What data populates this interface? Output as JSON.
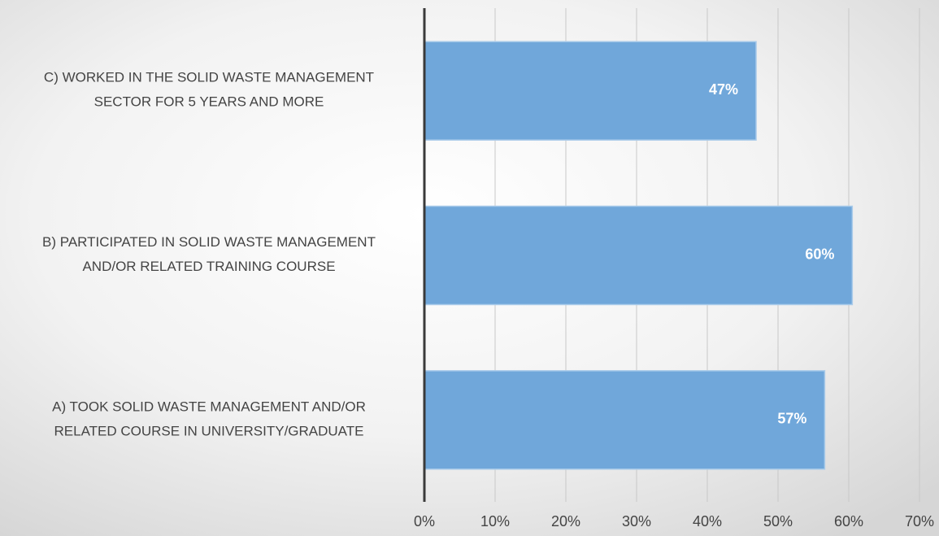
{
  "chart_data": {
    "type": "barh",
    "categories": [
      [
        "C) WORKED IN THE SOLID WASTE MANAGEMENT",
        "SECTOR FOR 5 YEARS AND MORE"
      ],
      [
        "B) PARTICIPATED IN SOLID WASTE MANAGEMENT",
        "AND/OR RELATED TRAINING COURSE"
      ],
      [
        "A) TOOK SOLID WASTE MANAGEMENT AND/OR",
        "RELATED COURSE IN UNIVERSITY/GRADUATE"
      ]
    ],
    "values": [
      46.9,
      60.5,
      56.6
    ],
    "value_labels": [
      "47%",
      "60%",
      "57%"
    ],
    "color": "#70a7da",
    "xlim": [
      0,
      70
    ],
    "xticks": [
      {
        "value": 0,
        "label": "0%"
      },
      {
        "value": 10,
        "label": "10%"
      },
      {
        "value": 20,
        "label": "20%"
      },
      {
        "value": 30,
        "label": "30%"
      },
      {
        "value": 40,
        "label": "40%"
      },
      {
        "value": 50,
        "label": "50%"
      },
      {
        "value": 60,
        "label": "60%"
      },
      {
        "value": 70,
        "label": "70%"
      }
    ],
    "grid": true
  }
}
